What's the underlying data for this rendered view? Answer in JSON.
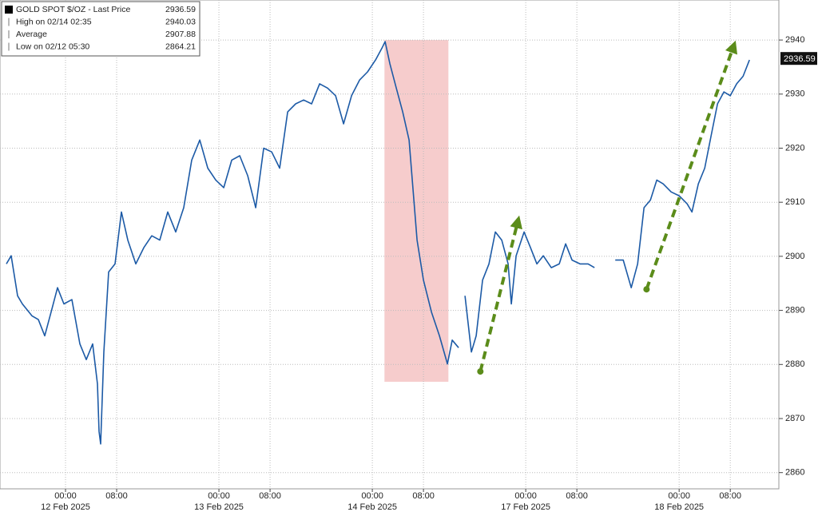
{
  "chart_data": {
    "type": "line",
    "legend": {
      "items": [
        {
          "label": "GOLD SPOT $/OZ - Last Price",
          "value": 2936.59
        },
        {
          "label": "High on 02/14 02:35",
          "value": 2940.03
        },
        {
          "label": "Average",
          "value": 2907.88
        },
        {
          "label": "Low on 02/12 05:30",
          "value": 2864.21
        }
      ]
    },
    "x": [
      -9.25,
      -8.5,
      -7.5,
      -6.75,
      -5.25,
      -4.25,
      -3.25,
      -2.25,
      -1.25,
      -0.25,
      1,
      2.25,
      3.25,
      4.25,
      5,
      5.25,
      5.5,
      6,
      6.75,
      7.75,
      8.75,
      9.75,
      11,
      12.25,
      13.5,
      14.75,
      16,
      17.25,
      18.5,
      19.75,
      21,
      22.25,
      23.5,
      24.75,
      26,
      27.25,
      28.5,
      29.75,
      31,
      32.25,
      33.5,
      34.75,
      36,
      37.25,
      38.5,
      39.75,
      41,
      42.25,
      43.5,
      44.75,
      46,
      47.25,
      48.5,
      49.5,
      50,
      50.75,
      51.75,
      52.75,
      53.75,
      54.5,
      55,
      56,
      57.25,
      58.5,
      59.75,
      60.5,
      61.5,
      62,
      62.5,
      63.5,
      64.25,
      65.25,
      66.25,
      67.25,
      68.25,
      69.25,
      69.75,
      70.5,
      71.75,
      72.75,
      73.75,
      74.75,
      76,
      77.25,
      78.25,
      79.25,
      80.5,
      81.75,
      82.75,
      85,
      86,
      87.25,
      88.5,
      89.5,
      90.5,
      91.5,
      92.5,
      93.5,
      94.75,
      96,
      97.25,
      98,
      99,
      100,
      101,
      102,
      103,
      104,
      105,
      106,
      107
    ],
    "series": [
      {
        "name": "GOLD SPOT $/OZ",
        "color": "#1c5aa6",
        "values": [
          2898.6,
          2900.1,
          2892.7,
          2891.2,
          2889,
          2888.3,
          2885.3,
          2889.7,
          2894.2,
          2891.2,
          2892,
          2883.8,
          2880.9,
          2883.8,
          2876.4,
          2867.6,
          2865.3,
          2882.3,
          2897.1,
          2898.6,
          2908.2,
          2903,
          2898.6,
          2901.6,
          2903.8,
          2903,
          2908.2,
          2904.5,
          2909,
          2917.8,
          2921.5,
          2916.3,
          2914.1,
          2912.7,
          2917.8,
          2918.6,
          2914.9,
          2909,
          2920,
          2919.3,
          2916.3,
          2926.7,
          2928.2,
          2928.9,
          2928.2,
          2931.9,
          2931.1,
          2929.7,
          2924.5,
          2929.7,
          2932.6,
          2934.1,
          2936.3,
          2938.5,
          2939.7,
          2935.6,
          2931.1,
          2926.7,
          2921.5,
          2910.4,
          2903,
          2895.6,
          2889.7,
          2885.3,
          2880.1,
          2884.5,
          2883.1,
          null,
          2892.7,
          2882.3,
          2885.3,
          2895.6,
          2898.6,
          2904.5,
          2903,
          2898.6,
          2891.2,
          2900.1,
          2904.5,
          2901.6,
          2898.6,
          2900.1,
          2897.9,
          2898.6,
          2902.3,
          2899.3,
          2898.6,
          2898.6,
          2897.9,
          null,
          2899.3,
          2899.3,
          2894.2,
          2898.6,
          2909,
          2910.4,
          2914.1,
          2913.4,
          2911.9,
          2911.2,
          2909.7,
          2908.2,
          2913.4,
          2916.3,
          2922.3,
          2928.2,
          2930.4,
          2929.7,
          2931.9,
          2933.3,
          2936.3
        ]
      }
    ],
    "xlim": [
      -10.25,
      111.6
    ],
    "xticks": [
      {
        "value": 0,
        "label": "00:00"
      },
      {
        "value": 8,
        "label": "08:00"
      },
      {
        "value": 24,
        "label": "00:00"
      },
      {
        "value": 32,
        "label": "08:00"
      },
      {
        "value": 48,
        "label": "00:00"
      },
      {
        "value": 56,
        "label": "08:00"
      },
      {
        "value": 72,
        "label": "00:00"
      },
      {
        "value": 80,
        "label": "08:00"
      },
      {
        "value": 96,
        "label": "00:00"
      },
      {
        "value": 104,
        "label": "08:00"
      }
    ],
    "date_labels": [
      {
        "value": 0,
        "label": "12 Feb 2025"
      },
      {
        "value": 24,
        "label": "13 Feb 2025"
      },
      {
        "value": 48,
        "label": "14 Feb 2025"
      },
      {
        "value": 72,
        "label": "17 Feb 2025"
      },
      {
        "value": 96,
        "label": "18 Feb 2025"
      }
    ],
    "ylim": [
      2857,
      2947.4
    ],
    "yticks": [
      2860,
      2870,
      2880,
      2890,
      2900,
      2910,
      2920,
      2930,
      2940
    ],
    "grid": true,
    "highlight": {
      "x": [
        49.9,
        59.9
      ],
      "y": [
        2876.8,
        2940
      ],
      "color": "#f6cccc"
    },
    "trend_arrows": [
      {
        "x": [
          64.9,
          70.75
        ],
        "y": [
          2878.7,
          2906.4
        ],
        "color": "#5b8c1a"
      },
      {
        "x": [
          90.9,
          104.5
        ],
        "y": [
          2893.9,
          2938.8
        ],
        "color": "#5b8c1a"
      }
    ]
  }
}
